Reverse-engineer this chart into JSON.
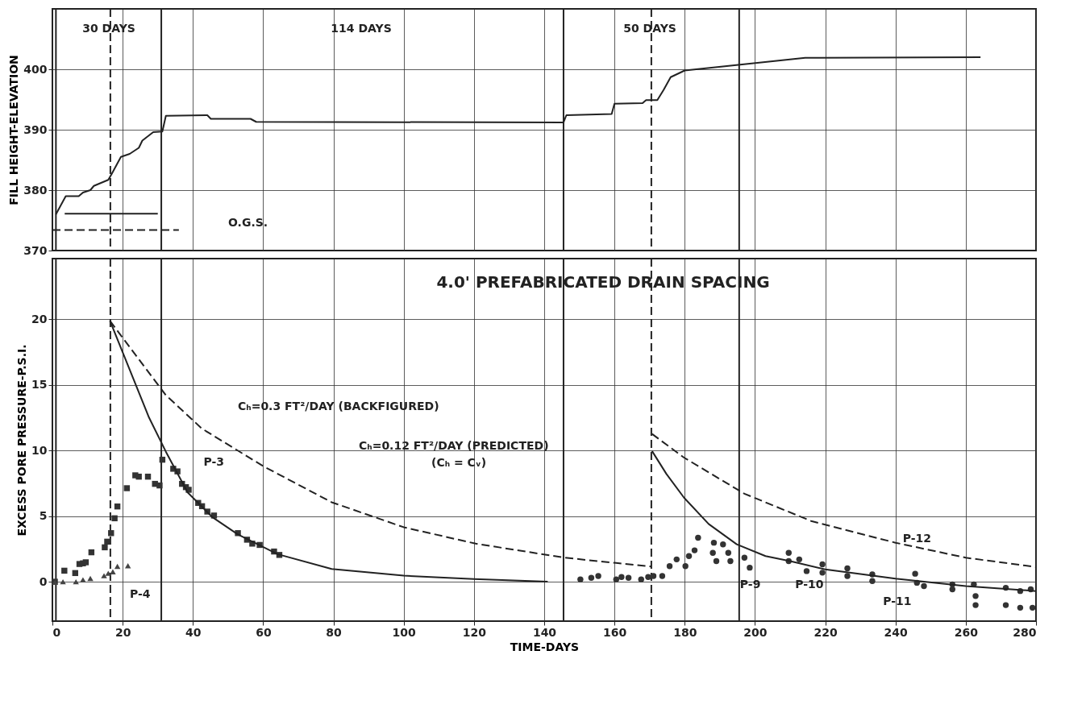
{
  "chart_data": [
    {
      "type": "line",
      "ylabel": "FILL HEIGHT-ELEVATION",
      "xlim": [
        0,
        280
      ],
      "xticks": [
        0,
        20,
        40,
        60,
        80,
        100,
        120,
        140,
        160,
        180,
        200,
        220,
        240,
        260,
        280
      ],
      "ylim": [
        370,
        410
      ],
      "yticks": [
        370,
        380,
        390,
        400
      ],
      "grid": true,
      "tick_labels": "y",
      "series": [
        {
          "color": "#222222",
          "x": [
            1,
            3.8,
            7.5,
            8.7,
            10.8,
            11.8,
            15.9,
            16.9,
            19.5,
            22,
            24.6,
            25.6,
            28.7,
            31.3,
            32.3,
            44.1,
            45.1,
            56.4,
            58,
            145.5,
            146.3,
            159.2,
            160,
            168,
            169,
            172.2,
            174,
            176,
            180,
            214.3,
            264.2
          ],
          "values": [
            376,
            379,
            379,
            379.6,
            380,
            380.7,
            381.7,
            382.7,
            385.5,
            386,
            387,
            388.2,
            389.6,
            389.7,
            392.3,
            392.4,
            391.8,
            391.8,
            391.3,
            391.2,
            392.4,
            392.6,
            394.3,
            394.4,
            394.9,
            394.9,
            396.6,
            398.7,
            399.8,
            401.9,
            402
          ]
        },
        {
          "color": "#222222",
          "x": [
            3.5,
            30
          ],
          "values": [
            376.1,
            376.1
          ]
        },
        {
          "color": "#222222",
          "line_style": "dashed",
          "x": [
            0,
            36
          ],
          "values": [
            373.4,
            373.4
          ]
        }
      ],
      "ref_lines": [
        {
          "axis": "x",
          "value": 1,
          "color": "#222222"
        },
        {
          "axis": "x",
          "value": 31,
          "color": "#222222"
        },
        {
          "axis": "x",
          "value": 145.5,
          "color": "#222222"
        },
        {
          "axis": "x",
          "value": 195.5,
          "color": "#222222"
        },
        {
          "axis": "x",
          "value": 16.5,
          "color": "#222222",
          "line_style": "dashed"
        },
        {
          "axis": "x",
          "value": 170.5,
          "color": "#222222",
          "line_style": "dashed"
        }
      ],
      "annotations": [
        "30 DAYS",
        "114 DAYS",
        "50 DAYS",
        "O.G.S."
      ]
    },
    {
      "type": "scatter",
      "xlabel": "TIME-DAYS",
      "ylabel": "EXCESS PORE PRESSURE-P.S.I.",
      "xlim": [
        0,
        280
      ],
      "xticks": [
        0,
        20,
        40,
        60,
        80,
        100,
        120,
        140,
        160,
        180,
        200,
        220,
        240,
        260,
        280
      ],
      "ylim": [
        -3,
        24.6
      ],
      "yticks": [
        0,
        5,
        10,
        15,
        20
      ],
      "grid": true,
      "series": [
        {
          "marker": "square",
          "color": "#333333",
          "x": [
            0.7,
            3.4,
            6.5,
            7.7,
            8.7,
            9.5,
            11.1,
            14.9,
            15.6,
            16.7,
            17.7,
            18.5,
            21.2,
            23.6,
            24.6,
            27.2,
            29.2,
            30.5,
            31.3,
            34.4,
            35.6,
            36.9,
            38,
            38.8,
            41.5,
            42.6,
            44.1,
            46,
            52.8,
            55.4,
            56.9,
            59,
            63.1,
            64.6
          ],
          "values": [
            0,
            0.84,
            0.66,
            1.35,
            1.4,
            1.48,
            2.24,
            2.62,
            3.05,
            3.7,
            4.83,
            5.73,
            7.12,
            8.1,
            8,
            8,
            7.45,
            7.33,
            9.29,
            8.6,
            8.4,
            7.45,
            7.2,
            7,
            6,
            5.75,
            5.34,
            5.04,
            3.7,
            3.2,
            2.9,
            2.8,
            2.3,
            2.04
          ]
        },
        {
          "marker": "triangle",
          "color": "#444444",
          "x": [
            0.7,
            3,
            6.7,
            8.7,
            10.8,
            14.7,
            15.9,
            17.2,
            18.5,
            21.5
          ],
          "values": [
            -0.05,
            0,
            0,
            0.15,
            0.25,
            0.46,
            0.64,
            0.76,
            1.17,
            1.22
          ]
        },
        {
          "marker": "circle",
          "color": "#333333",
          "x": [
            150.3,
            153.4,
            155.4,
            160.5,
            162,
            164,
            167.6,
            169.6,
            171.1,
            173.6,
            175.7,
            177.7,
            180.2,
            181.2,
            182.8,
            183.8,
            188.3,
            190.9,
            188,
            192.4,
            189,
            193,
            197,
            198.5,
            209.6,
            209.6,
            212.6,
            214.7,
            219.2,
            219.2,
            226.3,
            226.3,
            233.4,
            233.4,
            245.6,
            246.1,
            248.1,
            256.2,
            256.2,
            262.3,
            262.8,
            262.8,
            271.4,
            271.4,
            275.5,
            275.5,
            278.5,
            279
          ],
          "values": [
            0.18,
            0.3,
            0.43,
            0.18,
            0.36,
            0.3,
            0.18,
            0.36,
            0.43,
            0.43,
            1.19,
            1.7,
            1.19,
            1.95,
            2.39,
            3.35,
            2.97,
            2.84,
            2.2,
            2.2,
            1.57,
            1.57,
            1.83,
            1.07,
            2.2,
            1.57,
            1.7,
            0.81,
            1.32,
            0.69,
            1.02,
            0.43,
            0.56,
            0.05,
            0.61,
            -0.08,
            -0.33,
            -0.2,
            -0.58,
            -0.2,
            -1.09,
            -1.78,
            -0.46,
            -1.78,
            -0.71,
            -1.98,
            -0.58,
            -1.98
          ]
        },
        {
          "type": "line",
          "color": "#222222",
          "x": [
            16.4,
            27.5,
            32.3,
            38.5,
            45.6,
            52.8,
            64.1,
            79.5,
            100,
            120,
            141
          ],
          "values": [
            19.85,
            12.5,
            9.9,
            6.8,
            4.9,
            3.6,
            2.1,
            0.97,
            0.46,
            0.2,
            0
          ]
        },
        {
          "type": "line",
          "color": "#222222",
          "x": [
            170.7,
            174.8,
            179.8,
            186.8,
            194.8,
            203,
            210,
            220,
            240,
            260,
            280
          ],
          "values": [
            9.95,
            8.2,
            6.4,
            4.4,
            2.85,
            1.95,
            1.57,
            0.94,
            0.23,
            -0.33,
            -0.71
          ]
        },
        {
          "type": "line",
          "color": "#222222",
          "line_style": "dashed",
          "x": [
            16.4,
            32.3,
            42.6,
            60,
            79.5,
            100,
            120.5,
            145.8,
            170.5
          ],
          "values": [
            19.85,
            14.2,
            11.65,
            8.8,
            6.05,
            4.15,
            2.9,
            1.83,
            1.15
          ]
        },
        {
          "type": "line",
          "color": "#222222",
          "line_style": "dashed",
          "x": [
            170.7,
            179.8,
            197,
            216.2,
            240,
            260,
            280
          ],
          "values": [
            11.25,
            9.45,
            6.7,
            4.6,
            2.97,
            1.83,
            1.12
          ]
        }
      ],
      "ref_lines": [
        {
          "axis": "x",
          "value": 1,
          "color": "#222222"
        },
        {
          "axis": "x",
          "value": 31,
          "color": "#222222"
        },
        {
          "axis": "x",
          "value": 145.5,
          "color": "#222222"
        },
        {
          "axis": "x",
          "value": 195.5,
          "color": "#222222"
        },
        {
          "axis": "x",
          "value": 16.5,
          "color": "#222222",
          "line_style": "dashed"
        },
        {
          "axis": "x",
          "value": 170.5,
          "color": "#222222",
          "line_style": "dashed"
        }
      ],
      "annotations": [
        "4.0' PREFABRICATED DRAIN SPACING",
        "Cₕ=0.3 FT²/DAY (BACKFIGURED)",
        "Cₕ=0.12 FT²/DAY (PREDICTED)",
        "(Cₕ = Cᵥ)",
        {
          "text": "P-3",
          "x": 35,
          "y": 8.5
        },
        "P-4",
        {
          "text": "P-9",
          "x": 190,
          "y": 1.3
        },
        {
          "text": "P-10",
          "x": 208,
          "y": 1.5
        },
        {
          "text": "P-11",
          "x": 233,
          "y": -0.2
        },
        {
          "text": "P-12",
          "x": 245.5,
          "y": 0.8
        }
      ]
    }
  ]
}
